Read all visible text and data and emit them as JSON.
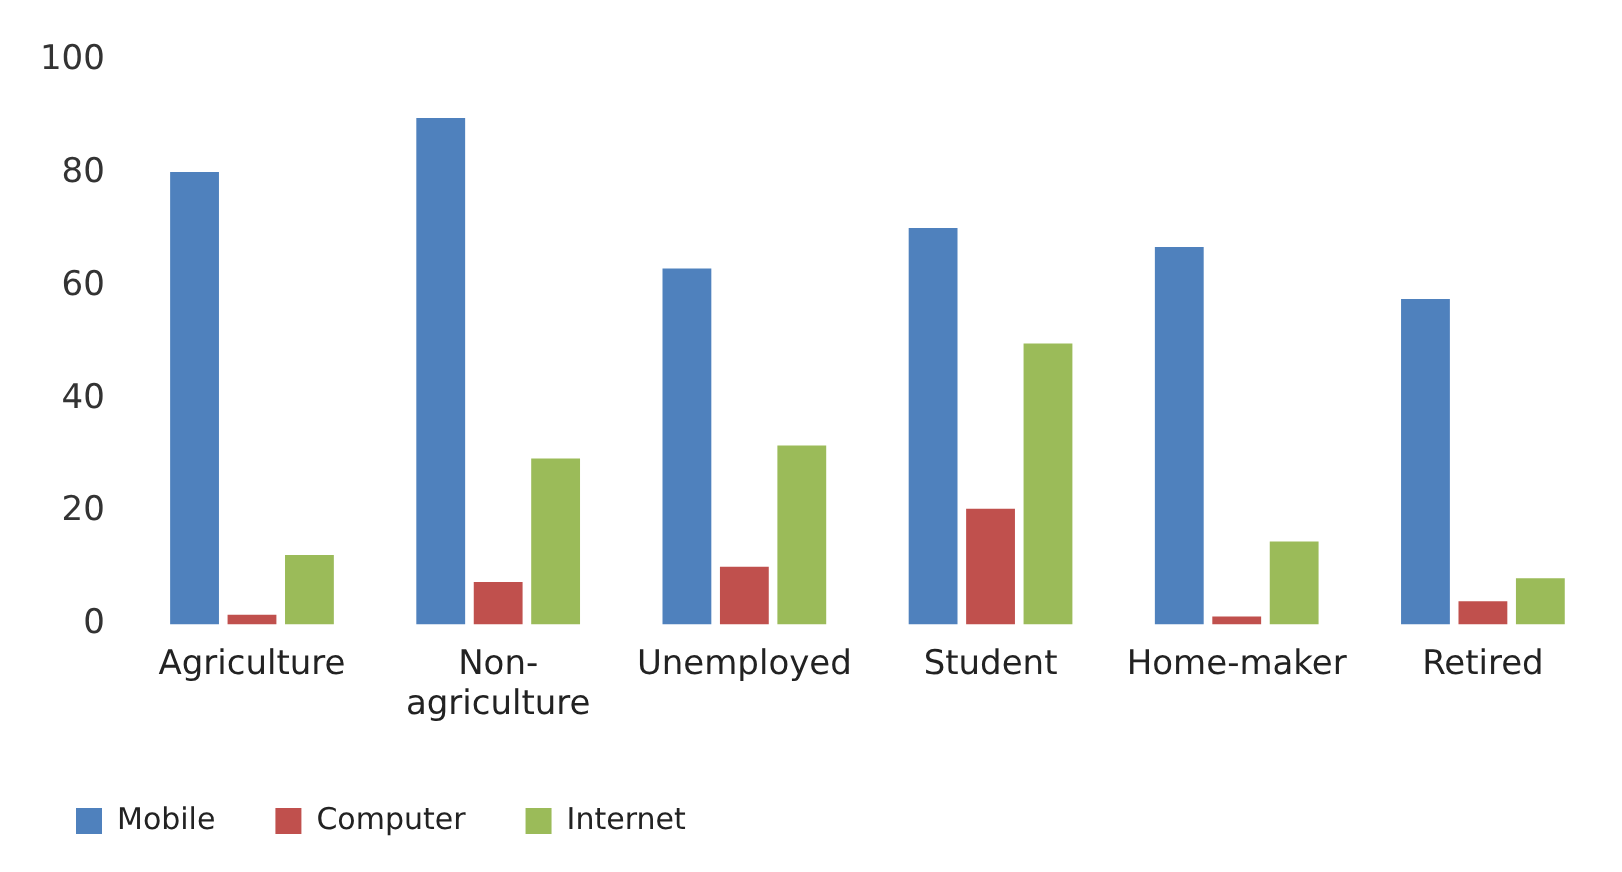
{
  "chart_data": {
    "type": "bar",
    "categories": [
      "Agriculture",
      "Non-agriculture",
      "Unemployed",
      "Student",
      "Home-maker",
      "Retired"
    ],
    "series": [
      {
        "name": "Mobile",
        "color": "#4f81bd",
        "values": [
          80.2,
          89.8,
          63.1,
          70.3,
          66.9,
          57.7
        ]
      },
      {
        "name": "Computer",
        "color": "#c0504d",
        "values": [
          1.7,
          7.5,
          10.2,
          20.5,
          1.4,
          4.1
        ]
      },
      {
        "name": "Internet",
        "color": "#9bbb59",
        "values": [
          12.3,
          29.4,
          31.7,
          49.8,
          14.7,
          8.2
        ]
      }
    ],
    "ylim": [
      0,
      100
    ],
    "yticks": [
      0,
      20,
      40,
      60,
      80,
      100
    ],
    "grid": false,
    "legend": "bottom left"
  }
}
